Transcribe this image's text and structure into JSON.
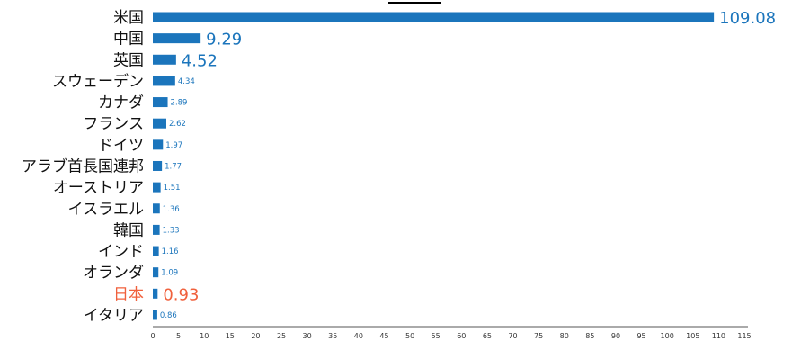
{
  "chart_data": {
    "type": "bar",
    "orientation": "horizontal",
    "categories": [
      "米国",
      "中国",
      "英国",
      "スウェーデン",
      "カナダ",
      "フランス",
      "ドイツ",
      "アラブ首長国連邦",
      "オーストリア",
      "イスラエル",
      "韓国",
      "インド",
      "オランダ",
      "日本",
      "イタリア"
    ],
    "values": [
      109.08,
      9.29,
      4.52,
      4.34,
      2.89,
      2.62,
      1.97,
      1.77,
      1.51,
      1.36,
      1.33,
      1.16,
      1.09,
      0.93,
      0.86
    ],
    "value_labels": [
      "109.08",
      "9.29",
      "4.52",
      "4.34",
      "2.89",
      "2.62",
      "1.97",
      "1.77",
      "1.51",
      "1.36",
      "1.33",
      "1.16",
      "1.09",
      "0.93",
      "0.86"
    ],
    "large_label_categories": [
      "米国",
      "中国",
      "英国",
      "日本"
    ],
    "highlight_category": "日本",
    "xlim": [
      0,
      115
    ],
    "xticks": [
      "0",
      "5",
      "10",
      "15",
      "20",
      "25",
      "30",
      "35",
      "40",
      "45",
      "50",
      "55",
      "60",
      "65",
      "70",
      "75",
      "80",
      "85",
      "90",
      "95",
      "100",
      "105",
      "110",
      "115"
    ],
    "grid": false,
    "colors": {
      "bar": "#1b75bc",
      "label": "#1b75bc",
      "highlight": "#f0603c",
      "axis": "#555555",
      "text": "#111111"
    }
  }
}
